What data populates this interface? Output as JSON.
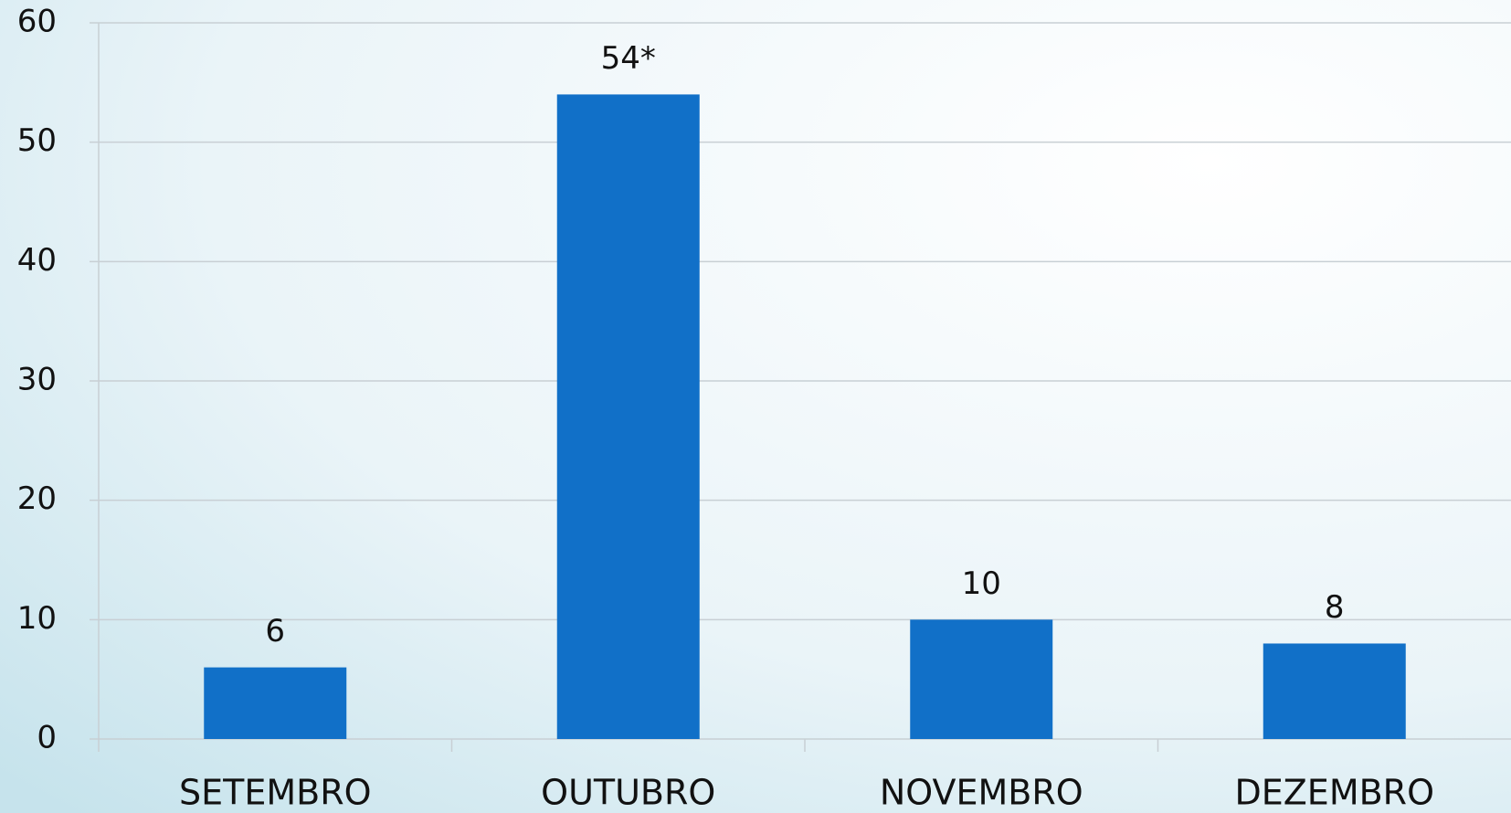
{
  "chart_data": {
    "type": "bar",
    "categories": [
      "SETEMBRO",
      "OUTUBRO",
      "NOVEMBRO",
      "DEZEMBRO"
    ],
    "values": [
      6,
      54,
      10,
      8
    ],
    "value_labels": [
      "6",
      "54*",
      "10",
      "8"
    ],
    "color": "#1170c8",
    "ylim": [
      0,
      60
    ],
    "yticks": [
      0,
      10,
      20,
      30,
      40,
      50,
      60
    ],
    "grid": true
  }
}
